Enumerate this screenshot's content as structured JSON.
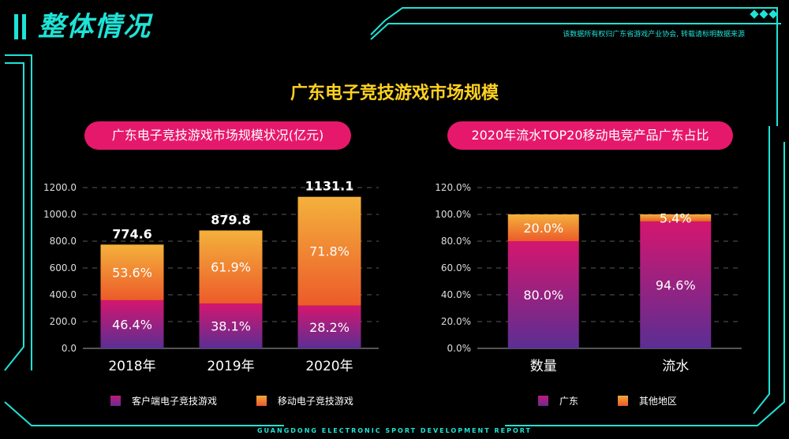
{
  "header": {
    "title": "整体情况",
    "source_note": "该数据所有权归广东省游戏产业协会, 转载请标明数据来源",
    "footer": "GUANGDONG ELECTRONIC SPORT DEVELOPMENT REPORT"
  },
  "main_title": "广东电子竞技游戏市场规模",
  "colors": {
    "accent": "#1ee3d6",
    "pill": "#e6186c",
    "title": "#ffd21f"
  },
  "chart_data": [
    {
      "type": "bar",
      "stacked": true,
      "title": "广东电子竞技游戏市场规模状况(亿元)",
      "categories": [
        "2018年",
        "2019年",
        "2020年"
      ],
      "ylim": [
        0,
        1200
      ],
      "yticks": [
        "0.0",
        "200.0",
        "400.0",
        "600.0",
        "800.0",
        "1000.0",
        "1200.0"
      ],
      "totals": [
        "774.6",
        "879.8",
        "1131.1"
      ],
      "total_values": [
        774.6,
        879.8,
        1131.1
      ],
      "series": [
        {
          "name": "客户端电子竞技游戏",
          "shares": [
            46.4,
            38.1,
            28.2
          ],
          "labels": [
            "46.4%",
            "38.1%",
            "28.2%"
          ]
        },
        {
          "name": "移动电子竞技游戏",
          "shares": [
            53.6,
            61.9,
            71.8
          ],
          "labels": [
            "53.6%",
            "61.9%",
            "71.8%"
          ]
        }
      ],
      "grid": true,
      "legend": "bottom"
    },
    {
      "type": "bar",
      "stacked": true,
      "title": "2020年流水TOP20移动电竞产品广东占比",
      "categories": [
        "数量",
        "流水"
      ],
      "ylim": [
        0,
        120
      ],
      "yticks": [
        "0.0%",
        "20.0%",
        "40.0%",
        "60.0%",
        "80.0%",
        "100.0%",
        "120.0%"
      ],
      "series": [
        {
          "name": "广东",
          "values": [
            80.0,
            94.6
          ],
          "labels": [
            "80.0%",
            "94.6%"
          ]
        },
        {
          "name": "其他地区",
          "values": [
            20.0,
            5.4
          ],
          "labels": [
            "20.0%",
            "5.4%"
          ]
        }
      ],
      "grid": true,
      "legend": "bottom"
    }
  ]
}
